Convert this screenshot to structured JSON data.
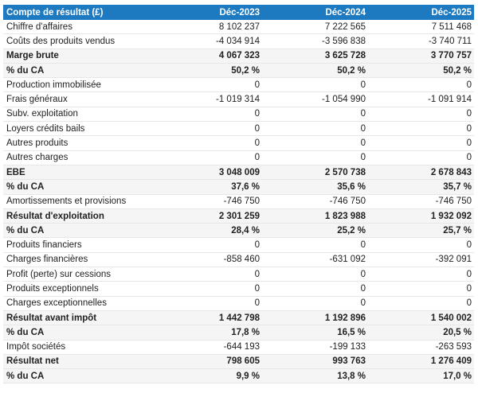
{
  "chart_data": {
    "type": "table",
    "title": "Compte de résultat (£)",
    "columns": [
      "Déc-2023",
      "Déc-2024",
      "Déc-2025"
    ],
    "rows": [
      {
        "label": "Chiffre d'affaires",
        "values": [
          "8 102 237",
          "7 222 565",
          "7 511 468"
        ],
        "emphasis": false
      },
      {
        "label": "Coûts des produits vendus",
        "values": [
          "-4 034 914",
          "-3 596 838",
          "-3 740 711"
        ],
        "emphasis": false
      },
      {
        "label": "Marge brute",
        "values": [
          "4 067 323",
          "3 625 728",
          "3 770 757"
        ],
        "emphasis": true
      },
      {
        "label": "% du CA",
        "values": [
          "50,2 %",
          "50,2 %",
          "50,2 %"
        ],
        "emphasis": true
      },
      {
        "label": "Production immobilisée",
        "values": [
          "0",
          "0",
          "0"
        ],
        "emphasis": false
      },
      {
        "label": "Frais généraux",
        "values": [
          "-1 019 314",
          "-1 054 990",
          "-1 091 914"
        ],
        "emphasis": false
      },
      {
        "label": "Subv. exploitation",
        "values": [
          "0",
          "0",
          "0"
        ],
        "emphasis": false
      },
      {
        "label": "Loyers crédits bails",
        "values": [
          "0",
          "0",
          "0"
        ],
        "emphasis": false
      },
      {
        "label": "Autres produits",
        "values": [
          "0",
          "0",
          "0"
        ],
        "emphasis": false
      },
      {
        "label": "Autres charges",
        "values": [
          "0",
          "0",
          "0"
        ],
        "emphasis": false
      },
      {
        "label": "EBE",
        "values": [
          "3 048 009",
          "2 570 738",
          "2 678 843"
        ],
        "emphasis": true
      },
      {
        "label": "% du CA",
        "values": [
          "37,6 %",
          "35,6 %",
          "35,7 %"
        ],
        "emphasis": true
      },
      {
        "label": "Amortissements et provisions",
        "values": [
          "-746 750",
          "-746 750",
          "-746 750"
        ],
        "emphasis": false
      },
      {
        "label": "Résultat d'exploitation",
        "values": [
          "2 301 259",
          "1 823 988",
          "1 932 092"
        ],
        "emphasis": true
      },
      {
        "label": "% du CA",
        "values": [
          "28,4 %",
          "25,2 %",
          "25,7 %"
        ],
        "emphasis": true
      },
      {
        "label": "Produits financiers",
        "values": [
          "0",
          "0",
          "0"
        ],
        "emphasis": false
      },
      {
        "label": "Charges financières",
        "values": [
          "-858 460",
          "-631 092",
          "-392 091"
        ],
        "emphasis": false
      },
      {
        "label": "Profit (perte) sur cessions",
        "values": [
          "0",
          "0",
          "0"
        ],
        "emphasis": false
      },
      {
        "label": "Produits exceptionnels",
        "values": [
          "0",
          "0",
          "0"
        ],
        "emphasis": false
      },
      {
        "label": "Charges exceptionnelles",
        "values": [
          "0",
          "0",
          "0"
        ],
        "emphasis": false
      },
      {
        "label": "Résultat avant impôt",
        "values": [
          "1 442 798",
          "1 192 896",
          "1 540 002"
        ],
        "emphasis": true
      },
      {
        "label": "% du CA",
        "values": [
          "17,8 %",
          "16,5 %",
          "20,5 %"
        ],
        "emphasis": true
      },
      {
        "label": "Impôt sociétés",
        "values": [
          "-644 193",
          "-199 133",
          "-263 593"
        ],
        "emphasis": false
      },
      {
        "label": "Résultat net",
        "values": [
          "798 605",
          "993 763",
          "1 276 409"
        ],
        "emphasis": true
      },
      {
        "label": "% du CA",
        "values": [
          "9,9 %",
          "13,8 %",
          "17,0 %"
        ],
        "emphasis": true
      }
    ]
  },
  "colors": {
    "header_bg": "#1d79c0",
    "header_text": "#ffffff",
    "emphasis_row_bg": "#f5f5f6",
    "row_border": "#e7e7e7",
    "text": "#212121"
  }
}
